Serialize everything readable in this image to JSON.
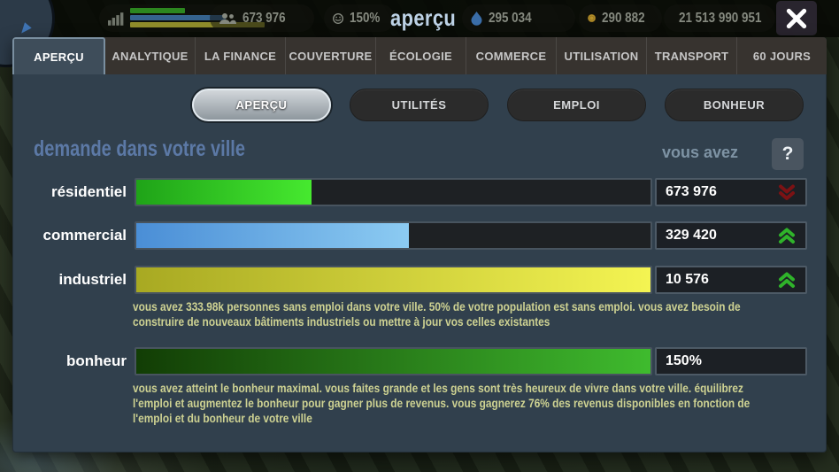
{
  "topbar": {
    "title": "aperçu",
    "population": "673 976",
    "happiness": "150%",
    "blue_resource": "295 034",
    "gold_coins": "290 882",
    "cash": "21 513 990 951",
    "close_label": ""
  },
  "tabs": [
    "APERÇU",
    "ANALYTIQUE",
    "LA FINANCE",
    "COUVERTURE",
    "ÉCOLOGIE",
    "COMMERCE",
    "UTILISATION",
    "TRANSPORT",
    "60 JOURS"
  ],
  "active_tab": "APERÇU",
  "subtabs": [
    "APERÇU",
    "UTILITÉS",
    "EMPLOI",
    "BONHEUR"
  ],
  "active_subtab": "APERÇU",
  "section": {
    "heading": "demande dans votre ville",
    "you_have_label": "vous avez",
    "help_label": "?"
  },
  "rows": [
    {
      "id": "residential",
      "label": "résidentiel",
      "value": "673 976",
      "trend": "down",
      "fill_pct": 34,
      "bar_colors": [
        "#1fa318",
        "#46e92f"
      ]
    },
    {
      "id": "commercial",
      "label": "commercial",
      "value": "329 420",
      "trend": "up",
      "fill_pct": 53,
      "bar_colors": [
        "#4a8ed6",
        "#8ccbf2"
      ]
    },
    {
      "id": "industrial",
      "label": "industriel",
      "value": "10 576",
      "trend": "up",
      "fill_pct": 100,
      "bar_colors": [
        "#a8a922",
        "#f4f452"
      ]
    },
    {
      "id": "happiness",
      "label": "bonheur",
      "value": "150%",
      "trend": "none",
      "fill_pct": 100,
      "bar_colors": [
        "#123d05",
        "#3fbb2e"
      ]
    }
  ],
  "captions": {
    "industrial": {
      "lines": [
        "vous avez 333.98k personnes sans emploi dans votre ville. 50% de votre population est sans emploi.  vous avez besoin de",
        "construire de nouveaux bâtiments industriels ou mettre à jour vos celles existantes"
      ]
    },
    "happiness": {
      "lines": [
        "vous avez atteint le bonheur maximal.  vous faites grande et les gens sont très heureux de vivre dans votre ville.   équilibrez",
        "l'emploi et augmentez le bonheur pour gagner plus de revenus. vous gagnerez 76% des revenus disponibles en fonction de",
        "l'emploi et du bonheur de votre ville"
      ]
    }
  },
  "colors": {
    "panel_bg": "#31404d",
    "tabstrip_bg": "#37332f",
    "heading_blue": "#5c79a6",
    "caption_khaki": "#ced292",
    "trend_down_red": "#7c1214",
    "trend_up_green": "#2fb32a"
  }
}
